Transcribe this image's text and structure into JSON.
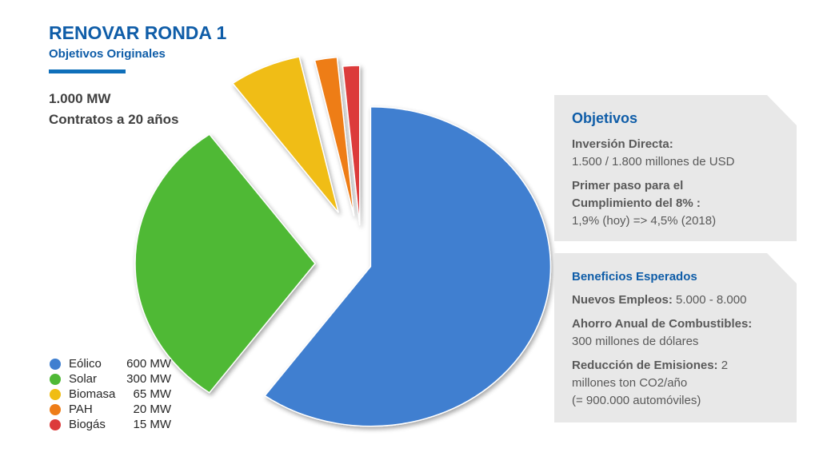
{
  "header": {
    "title": "RENOVAR RONDA 1",
    "subtitle": "Objetivos Originales"
  },
  "summary": {
    "capacity": "1.000 MW",
    "contracts": "Contratos a 20 años"
  },
  "chart_data": {
    "type": "pie",
    "title": "",
    "exploded": true,
    "unit": "MW",
    "categories": [
      "Eólico",
      "Solar",
      "Biomasa",
      "PAH",
      "Biogás"
    ],
    "values": [
      600,
      300,
      65,
      20,
      15
    ],
    "value_labels": [
      "600 MW",
      "300 MW",
      "65 MW",
      "20 MW",
      "15 MW"
    ],
    "colors": [
      "#3f7fd0",
      "#4fb936",
      "#f0bd14",
      "#ee7d18",
      "#dc3b3b"
    ],
    "legend_position": "bottom-left"
  },
  "panels": {
    "objetivos": {
      "title": "Objetivos",
      "inversion_label": "Inversión Directa:",
      "inversion_value": "1.500 / 1.800 millones de USD",
      "paso_label_1": "Primer paso para el",
      "paso_label_2": "Cumplimiento del 8% :",
      "paso_value": "1,9% (hoy) => 4,5% (2018)"
    },
    "beneficios": {
      "title": "Beneficios Esperados",
      "empleos_label": "Nuevos Empleos:",
      "empleos_value": " 5.000 - 8.000",
      "ahorro_label": "Ahorro Anual de Combustibles:",
      "ahorro_value": "300 millones de dólares",
      "emisiones_label": "Reducción de Emisiones:",
      "emisiones_value_1": " 2",
      "emisiones_value_2": "millones ton CO2/año",
      "emisiones_value_3": "(= 900.000 automóviles)"
    }
  }
}
